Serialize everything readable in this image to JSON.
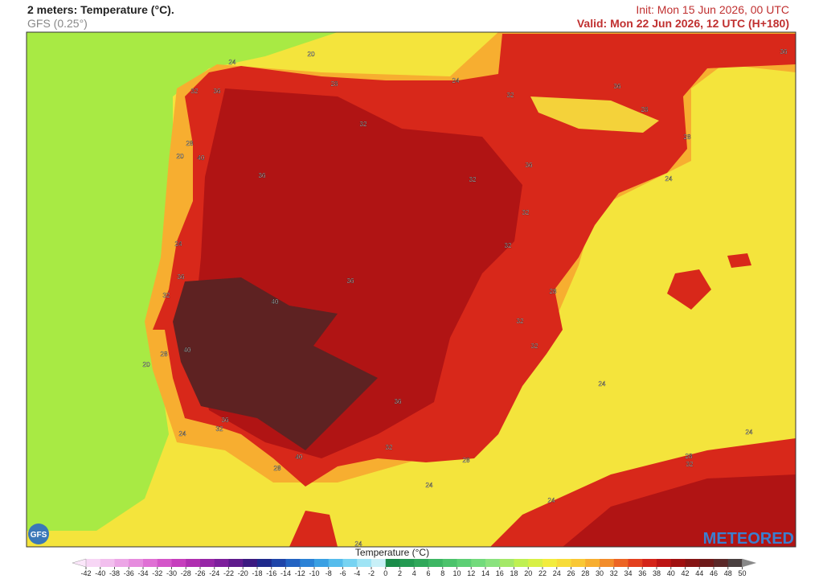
{
  "header": {
    "title": "2 meters: Temperature (°C).",
    "subtitle": "GFS (0.25°)",
    "init": "Init: Mon 15 Jun 2026, 00 UTC",
    "valid": "Valid: Mon 22 Jun 2026, 12 UTC (H+180)"
  },
  "map": {
    "contour_labels": [
      "24",
      "20",
      "32",
      "36",
      "28",
      "24",
      "32",
      "36",
      "36",
      "28",
      "28",
      "32",
      "28",
      "20",
      "40",
      "36",
      "36",
      "24",
      "32",
      "32",
      "24",
      "32",
      "36",
      "36",
      "32",
      "28",
      "40",
      "32",
      "32",
      "40",
      "28",
      "20",
      "24",
      "36",
      "36",
      "32",
      "24",
      "24",
      "32",
      "40",
      "28",
      "28",
      "32",
      "28",
      "24",
      "24",
      "24"
    ]
  },
  "logos": {
    "model": "GFS",
    "brand": "METEORED"
  },
  "colorbar": {
    "title": "Temperature (°C)",
    "ticks": [
      -42,
      -40,
      -38,
      -36,
      -34,
      -32,
      -30,
      -28,
      -26,
      -24,
      -22,
      -20,
      -18,
      -16,
      -14,
      -12,
      -10,
      -8,
      -6,
      -4,
      -2,
      0,
      2,
      4,
      6,
      8,
      10,
      12,
      14,
      16,
      18,
      20,
      22,
      24,
      26,
      28,
      30,
      32,
      34,
      36,
      38,
      40,
      42,
      44,
      46,
      48,
      50
    ],
    "colors": [
      "#f7d6f5",
      "#f2bfee",
      "#eca6e6",
      "#e68cde",
      "#df70d4",
      "#d455c9",
      "#c63fbd",
      "#b02fb0",
      "#9626a6",
      "#7d1f9c",
      "#5e1a8c",
      "#3b1a80",
      "#1f2a8c",
      "#1f45a8",
      "#2363c2",
      "#2b82d6",
      "#3aa0e3",
      "#55bcec",
      "#77d3f2",
      "#9fe4f5",
      "#c8f0f7",
      "#1a8c4a",
      "#249a52",
      "#30a85a",
      "#3db663",
      "#4cc36c",
      "#5dcf75",
      "#72da7c",
      "#8ae27f",
      "#a4e868",
      "#bff052",
      "#d8f046",
      "#f2ec3e",
      "#f7dc3a",
      "#f9c835",
      "#f7ae30",
      "#f28c2a",
      "#ec6424",
      "#e3401e",
      "#d42419",
      "#bd1414",
      "#a01010",
      "#851414",
      "#6e1a1a",
      "#5a2828",
      "#4a4040"
    ]
  }
}
